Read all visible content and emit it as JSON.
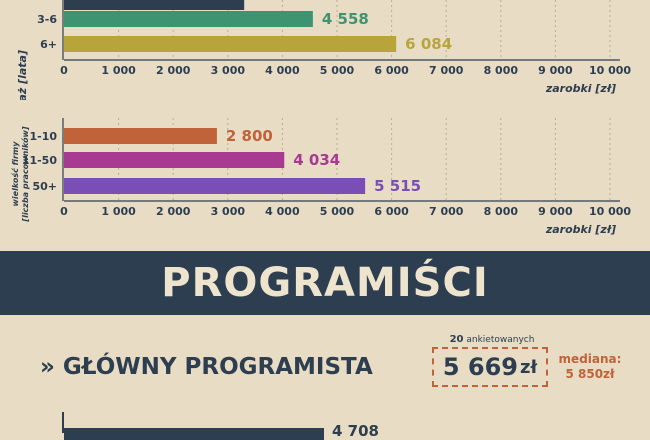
{
  "chart_data": [
    {
      "type": "bar",
      "orientation": "horizontal",
      "ylabel": "staż [lata]",
      "xlabel": "zarobki [zł]",
      "xlim": [
        0,
        10000
      ],
      "ticks": [
        "0",
        "1 000",
        "2 000",
        "3 000",
        "4 000",
        "5 000",
        "6 000",
        "7 000",
        "8 000",
        "9 000",
        "10 000"
      ],
      "categories": [
        "",
        "3-6",
        "6+"
      ],
      "values": [
        3300,
        4558,
        6084
      ],
      "data_labels": [
        "",
        "4 558",
        "6 084"
      ],
      "colors": [
        "#2d3e50",
        "#3e9470",
        "#b7a53c"
      ],
      "grid": true
    },
    {
      "type": "bar",
      "orientation": "horizontal",
      "ylabel": "wielkość firmy [liczba pracowników]",
      "xlabel": "zarobki [zł]",
      "xlim": [
        0,
        10000
      ],
      "ticks": [
        "0",
        "1 000",
        "2 000",
        "3 000",
        "4 000",
        "5 000",
        "6 000",
        "7 000",
        "8 000",
        "9 000",
        "10 000"
      ],
      "categories": [
        "1-10",
        "11-50",
        "50+"
      ],
      "values": [
        2800,
        4034,
        5515
      ],
      "data_labels": [
        "2 800",
        "4 034",
        "5 515"
      ],
      "colors": [
        "#c0623a",
        "#a83a92",
        "#7a4fb5"
      ],
      "grid": true
    }
  ],
  "banner": {
    "title": "PROGRAMIŚCI"
  },
  "role": {
    "title": "» GŁÓWNY PROGRAMISTA",
    "respondents_count": "20",
    "respondents_label": "ankietowanych",
    "average_value": "5 669",
    "average_currency": "zł",
    "median_label": "mediana:",
    "median_value": "5 850zł"
  },
  "next_chart_peek": {
    "value_label": "4 708"
  }
}
